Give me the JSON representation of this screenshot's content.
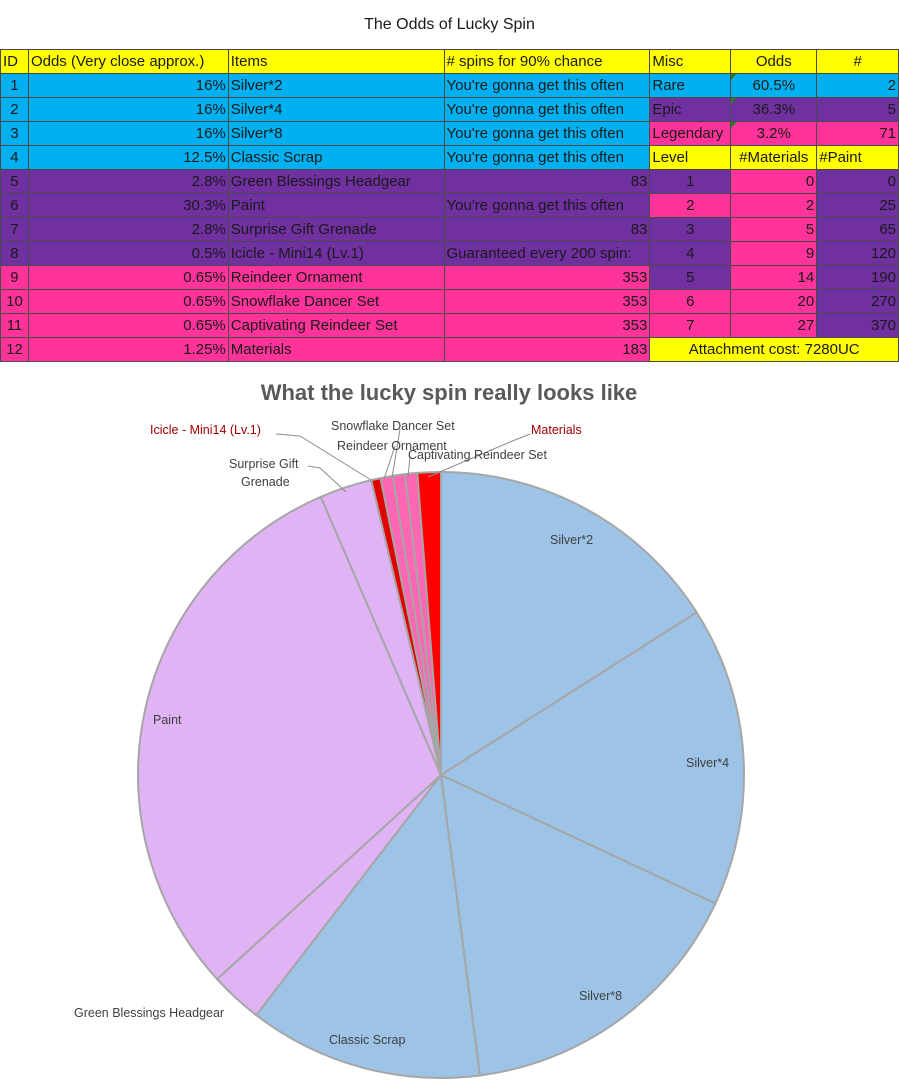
{
  "sheet_title": "The Odds of Lucky Spin",
  "header": {
    "id": "ID",
    "odds": "Odds (Very close approx.)",
    "items": "Items",
    "spins": "# spins for 90% chance",
    "misc": "Misc",
    "misc_odds": "Odds",
    "misc_count": "#"
  },
  "rows": [
    {
      "id": "1",
      "odds": "16%",
      "item": "Silver*2",
      "spins": "You're gonna get this often"
    },
    {
      "id": "2",
      "odds": "16%",
      "item": "Silver*4",
      "spins": "You're gonna get this often"
    },
    {
      "id": "3",
      "odds": "16%",
      "item": "Silver*8",
      "spins": "You're gonna get this often"
    },
    {
      "id": "4",
      "odds": "12.5%",
      "item": "Classic Scrap",
      "spins": "You're gonna get this often"
    },
    {
      "id": "5",
      "odds": "2.8%",
      "item": "Green Blessings Headgear",
      "spins": "83"
    },
    {
      "id": "6",
      "odds": "30.3%",
      "item": "Paint",
      "spins": "You're gonna get this often"
    },
    {
      "id": "7",
      "odds": "2.8%",
      "item": "Surprise Gift Grenade",
      "spins": "83"
    },
    {
      "id": "8",
      "odds": "0.5%",
      "item": "Icicle - Mini14 (Lv.1)",
      "spins": "Guaranteed every 200 spin:"
    },
    {
      "id": "9",
      "odds": "0.65%",
      "item": "Reindeer Ornament",
      "spins": "353"
    },
    {
      "id": "10",
      "odds": "0.65%",
      "item": "Snowflake Dancer Set",
      "spins": "353"
    },
    {
      "id": "11",
      "odds": "0.65%",
      "item": "Captivating Reindeer Set",
      "spins": "353"
    },
    {
      "id": "12",
      "odds": "1.25%",
      "item": "Materials",
      "spins": "183"
    }
  ],
  "misc": [
    {
      "name": "Rare",
      "odds": "60.5%",
      "count": "2"
    },
    {
      "name": "Epic",
      "odds": "36.3%",
      "count": "5"
    },
    {
      "name": "Legendary",
      "odds": "3.2%",
      "count": "71"
    }
  ],
  "level_header": {
    "level": "Level",
    "materials": "#Materials",
    "paint": "#Paint"
  },
  "levels": [
    {
      "level": "1",
      "materials": "0",
      "paint": "0"
    },
    {
      "level": "2",
      "materials": "2",
      "paint": "25"
    },
    {
      "level": "3",
      "materials": "5",
      "paint": "65"
    },
    {
      "level": "4",
      "materials": "9",
      "paint": "120"
    },
    {
      "level": "5",
      "materials": "14",
      "paint": "190"
    },
    {
      "level": "6",
      "materials": "20",
      "paint": "270"
    },
    {
      "level": "7",
      "materials": "27",
      "paint": "370"
    }
  ],
  "attachment_cost": "Attachment cost: 7280UC",
  "colors": {
    "silver": "#9dc3e6",
    "paint": "#e0b3f5",
    "red": "#ff0000",
    "pink": "#ff66b3",
    "yellow": "#ffff00",
    "blue": "#00b0f0",
    "purple": "#7030a0",
    "magenta": "#ff3399"
  },
  "chart_data": {
    "type": "pie",
    "title": "What the lucky spin really looks like",
    "slices": [
      {
        "label": "Silver*2",
        "value": 16,
        "color": "#9dc3e6"
      },
      {
        "label": "Silver*4",
        "value": 16,
        "color": "#9dc3e6"
      },
      {
        "label": "Silver*8",
        "value": 16,
        "color": "#9dc3e6"
      },
      {
        "label": "Classic Scrap",
        "value": 12.5,
        "color": "#9dc3e6"
      },
      {
        "label": "Green Blessings Headgear",
        "value": 2.8,
        "color": "#e0b3f5"
      },
      {
        "label": "Paint",
        "value": 30.3,
        "color": "#e0b3f5"
      },
      {
        "label": "Surprise Gift Grenade",
        "value": 2.8,
        "color": "#e0b3f5"
      },
      {
        "label": "Icicle - Mini14 (Lv.1)",
        "value": 0.5,
        "color": "#e00000"
      },
      {
        "label": "Reindeer Ornament",
        "value": 0.65,
        "color": "#ff66b3"
      },
      {
        "label": "Snowflake Dancer Set",
        "value": 0.65,
        "color": "#ff66b3"
      },
      {
        "label": "Captivating Reindeer Set",
        "value": 0.65,
        "color": "#ff66b3"
      },
      {
        "label": "Materials",
        "value": 1.25,
        "color": "#ff0000"
      }
    ]
  },
  "chart_labels": {
    "silver2": "Silver*2",
    "silver4": "Silver*4",
    "silver8": "Silver*8",
    "classic": "Classic Scrap",
    "green": "Green Blessings Headgear",
    "paint": "Paint",
    "surprise1": "Surprise Gift",
    "surprise2": "Grenade",
    "icicle": "Icicle - Mini14 (Lv.1)",
    "reindeer": "Reindeer Ornament",
    "snowflake": "Snowflake Dancer Set",
    "captivating": "Captivating Reindeer Set",
    "materials": "Materials"
  }
}
